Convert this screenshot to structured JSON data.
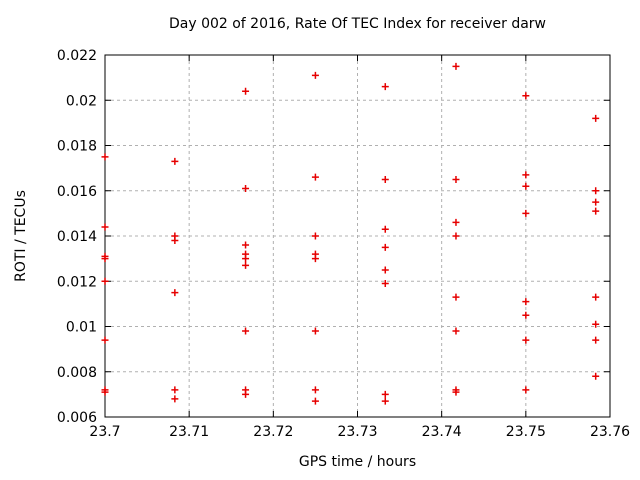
{
  "chart_data": {
    "type": "scatter",
    "title": "Day 002 of 2016, Rate Of TEC Index for receiver darw",
    "xlabel": "GPS time / hours",
    "ylabel": "ROTI / TECUs",
    "xlim": [
      23.7,
      23.76
    ],
    "ylim": [
      0.006,
      0.022
    ],
    "xticks": [
      23.7,
      23.71,
      23.72,
      23.73,
      23.74,
      23.75,
      23.76
    ],
    "xtick_labels": [
      "23.7",
      "23.71",
      "23.72",
      "23.73",
      "23.74",
      "23.75",
      "23.76"
    ],
    "yticks": [
      0.006,
      0.008,
      0.01,
      0.012,
      0.014,
      0.016,
      0.018,
      0.02,
      0.022
    ],
    "ytick_labels": [
      "0.006",
      "0.008",
      "0.01",
      "0.012",
      "0.014",
      "0.016",
      "0.018",
      "0.02",
      "0.022"
    ],
    "grid": true,
    "legend": false,
    "marker_shape": "plus",
    "marker_color": "#e60000",
    "grid_color": "#b0b0b0",
    "frame_color": "#000000",
    "series": [
      {
        "name": "ROTI",
        "points": [
          [
            23.7,
            0.0175
          ],
          [
            23.7,
            0.0144
          ],
          [
            23.7,
            0.0131
          ],
          [
            23.7,
            0.013
          ],
          [
            23.7,
            0.012
          ],
          [
            23.7,
            0.0094
          ],
          [
            23.7,
            0.0072
          ],
          [
            23.7,
            0.0071
          ],
          [
            23.7083,
            0.0173
          ],
          [
            23.7083,
            0.014
          ],
          [
            23.7083,
            0.0138
          ],
          [
            23.7083,
            0.0115
          ],
          [
            23.7083,
            0.0072
          ],
          [
            23.7083,
            0.0068
          ],
          [
            23.7167,
            0.0204
          ],
          [
            23.7167,
            0.0161
          ],
          [
            23.7167,
            0.0136
          ],
          [
            23.7167,
            0.0132
          ],
          [
            23.7167,
            0.013
          ],
          [
            23.7167,
            0.0127
          ],
          [
            23.7167,
            0.0098
          ],
          [
            23.7167,
            0.0072
          ],
          [
            23.7167,
            0.007
          ],
          [
            23.725,
            0.0211
          ],
          [
            23.725,
            0.0166
          ],
          [
            23.725,
            0.014
          ],
          [
            23.725,
            0.0132
          ],
          [
            23.725,
            0.013
          ],
          [
            23.725,
            0.0098
          ],
          [
            23.725,
            0.0072
          ],
          [
            23.725,
            0.0067
          ],
          [
            23.7333,
            0.0206
          ],
          [
            23.7333,
            0.0165
          ],
          [
            23.7333,
            0.0143
          ],
          [
            23.7333,
            0.0135
          ],
          [
            23.7333,
            0.0125
          ],
          [
            23.7333,
            0.0119
          ],
          [
            23.7333,
            0.007
          ],
          [
            23.7333,
            0.0067
          ],
          [
            23.7417,
            0.0215
          ],
          [
            23.7417,
            0.0165
          ],
          [
            23.7417,
            0.0146
          ],
          [
            23.7417,
            0.014
          ],
          [
            23.7417,
            0.0113
          ],
          [
            23.7417,
            0.0098
          ],
          [
            23.7417,
            0.0072
          ],
          [
            23.7417,
            0.0071
          ],
          [
            23.75,
            0.0202
          ],
          [
            23.75,
            0.0167
          ],
          [
            23.75,
            0.0162
          ],
          [
            23.75,
            0.015
          ],
          [
            23.75,
            0.0111
          ],
          [
            23.75,
            0.0105
          ],
          [
            23.75,
            0.0094
          ],
          [
            23.75,
            0.0072
          ],
          [
            23.7583,
            0.0192
          ],
          [
            23.7583,
            0.016
          ],
          [
            23.7583,
            0.0155
          ],
          [
            23.7583,
            0.0151
          ],
          [
            23.7583,
            0.0113
          ],
          [
            23.7583,
            0.0101
          ],
          [
            23.7583,
            0.0094
          ],
          [
            23.7583,
            0.0078
          ]
        ]
      }
    ]
  }
}
